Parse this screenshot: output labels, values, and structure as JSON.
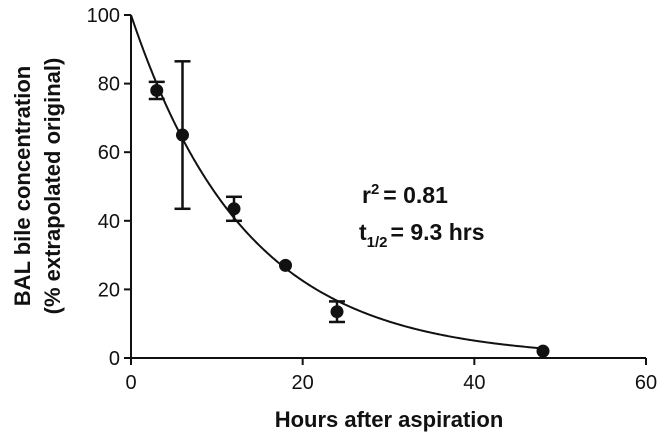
{
  "chart_data": {
    "type": "scatter",
    "xlabel": "Hours after aspiration",
    "ylabel": "BAL bile concentration",
    "ylabel2": "(% extrapolated original)",
    "xlim": [
      0,
      60
    ],
    "ylim": [
      0,
      100
    ],
    "xticks": [
      0,
      20,
      40,
      60
    ],
    "yticks": [
      0,
      20,
      40,
      60,
      80,
      100
    ],
    "points": [
      {
        "x": 3,
        "y": 78,
        "err_low": 75.5,
        "err_high": 80.5
      },
      {
        "x": 6,
        "y": 65,
        "err_low": 43.5,
        "err_high": 86.5
      },
      {
        "x": 12,
        "y": 43.5,
        "err_low": 40,
        "err_high": 47
      },
      {
        "x": 18,
        "y": 27,
        "err_low": 27,
        "err_high": 27
      },
      {
        "x": 24,
        "y": 13.5,
        "err_low": 10.5,
        "err_high": 16.5
      },
      {
        "x": 48,
        "y": 2,
        "err_low": 2,
        "err_high": 2
      }
    ],
    "fit": {
      "type": "exponential-decay",
      "y0": 100,
      "half_life": 9.3
    },
    "annotations": {
      "r2_base": "r",
      "r2_sup": "2",
      "r2_value": "= 0.81",
      "half_base": "t",
      "half_sub": "1/2",
      "half_value": "= 9.3 hrs"
    },
    "grid": false,
    "legend": "none"
  }
}
